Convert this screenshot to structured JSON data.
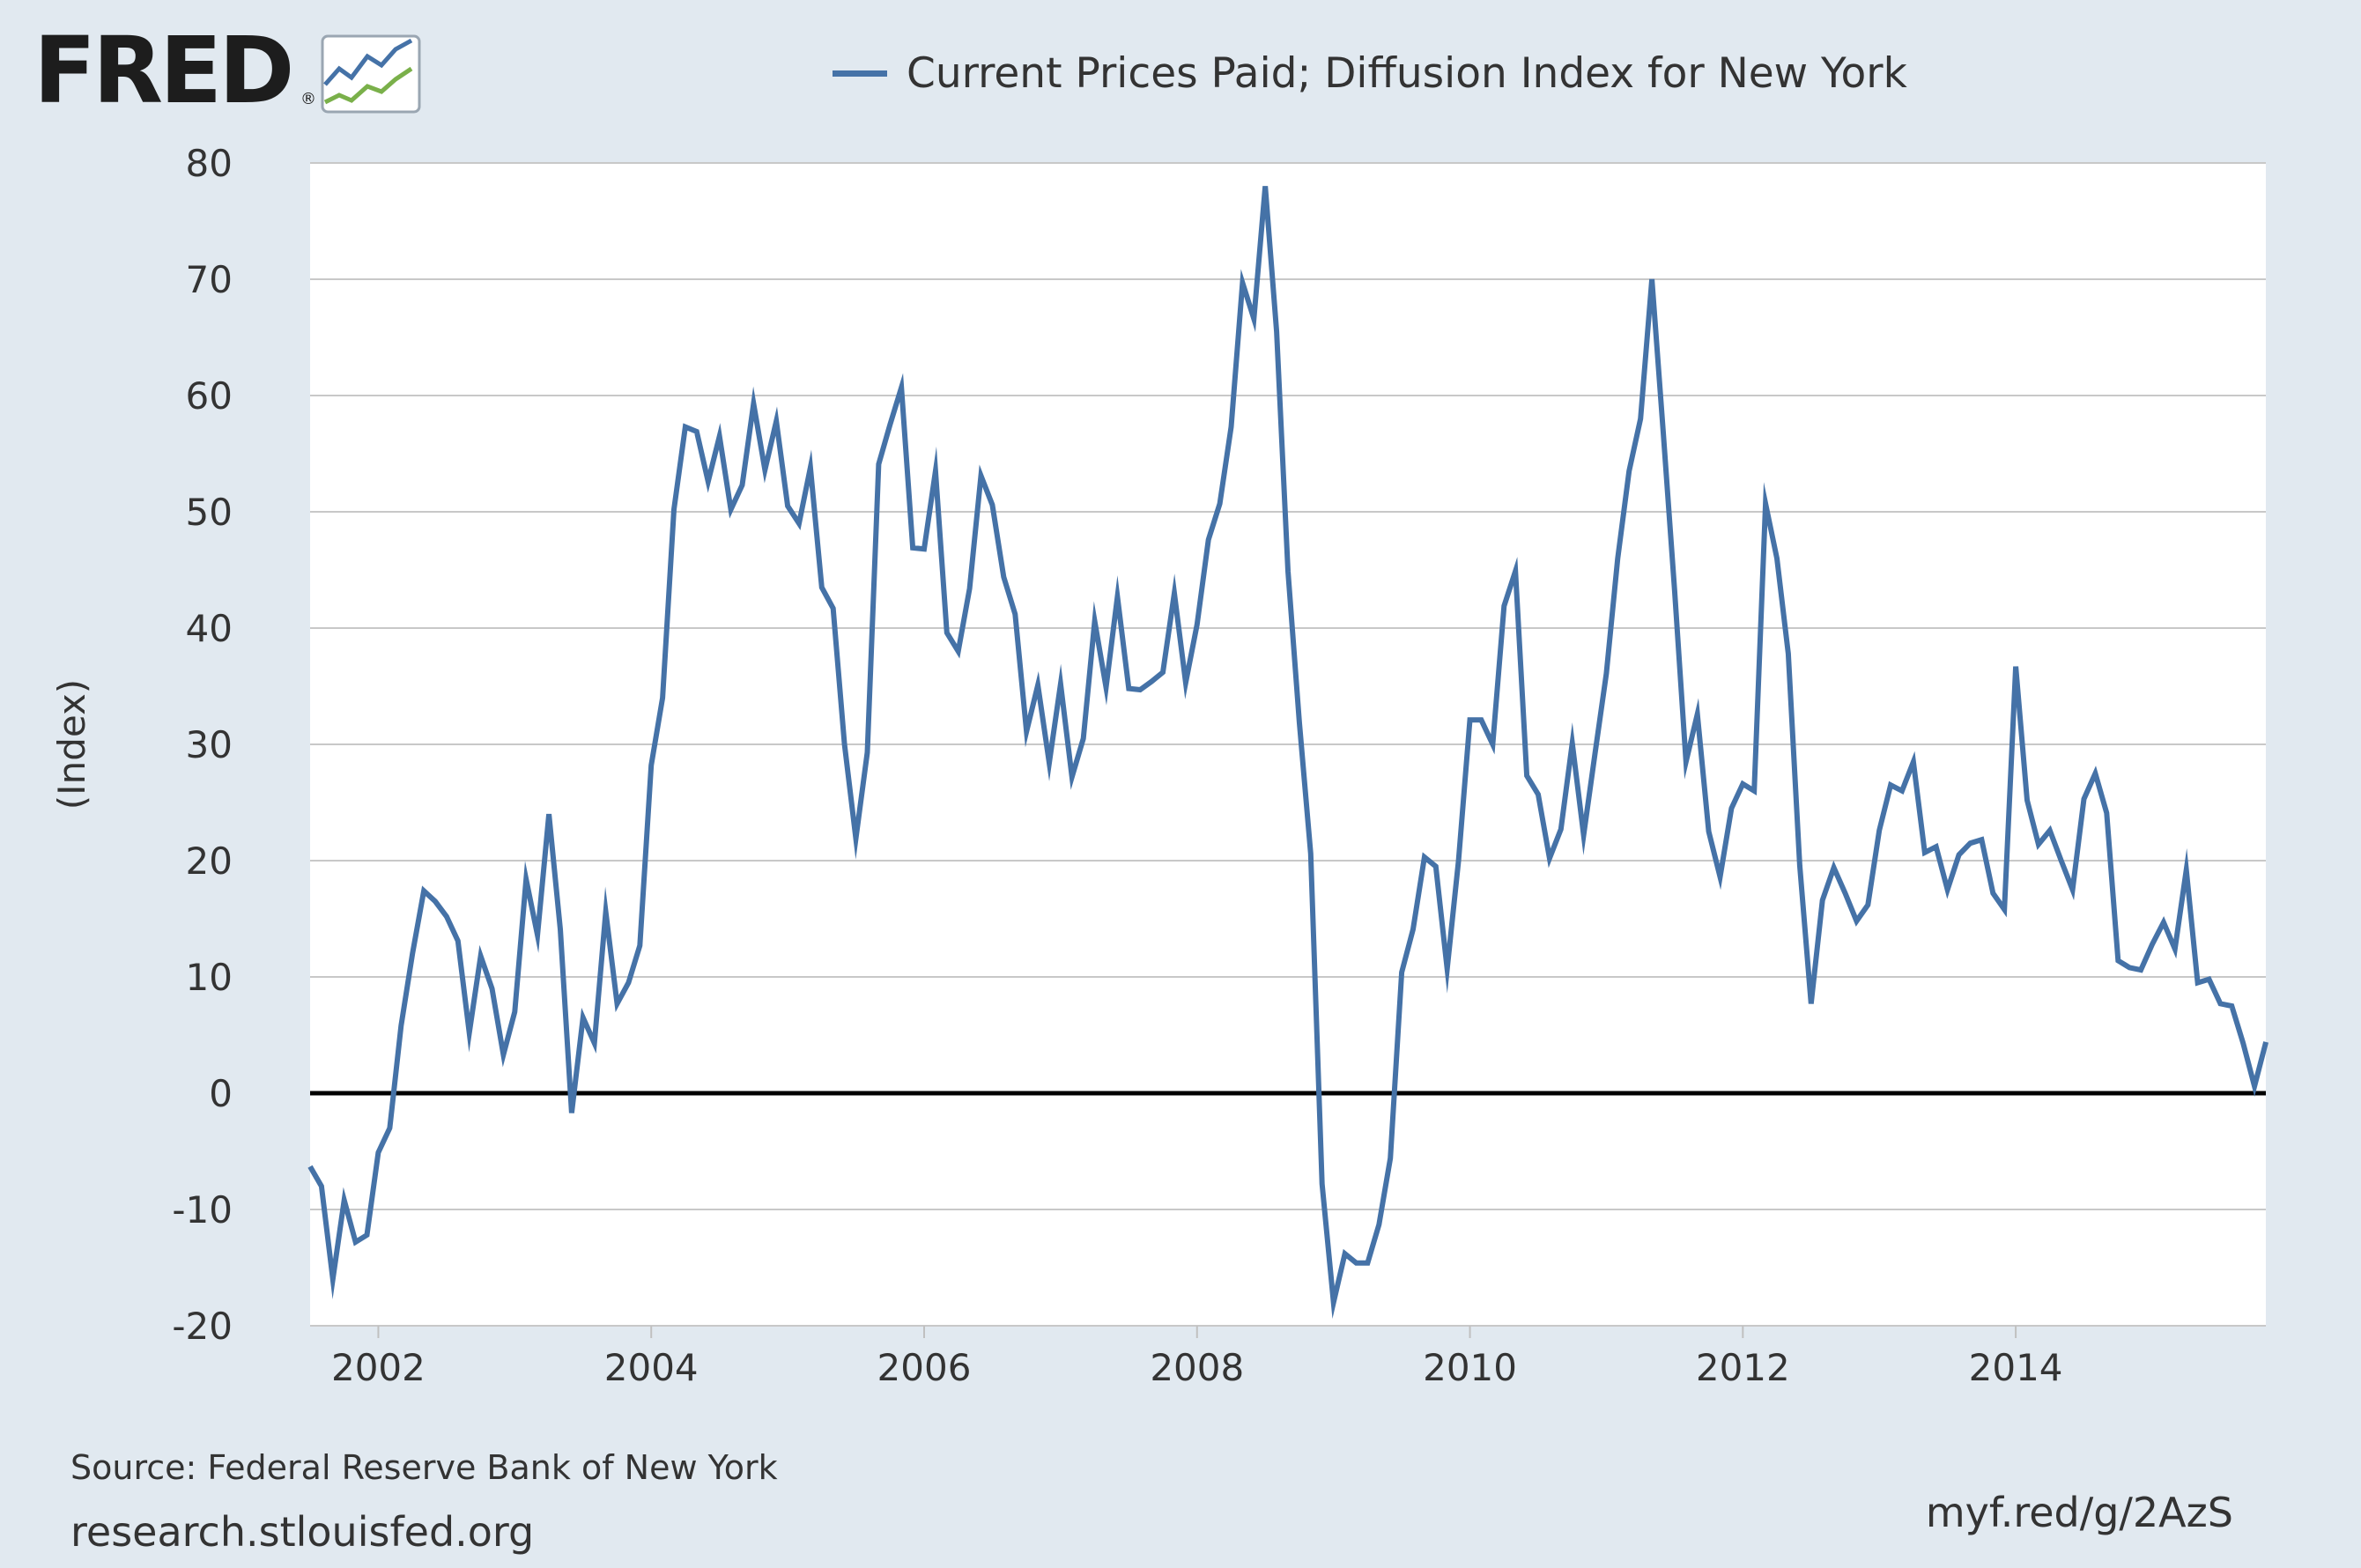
{
  "brand": {
    "logo_text": "FRED",
    "registered_mark": "®",
    "colors": {
      "line1": "#4572a7",
      "line2": "#7ab04a",
      "frame": "#9aa6b2"
    }
  },
  "legend": {
    "label": "Current Prices Paid; Diffusion Index for New York"
  },
  "footer": {
    "source": "Source: Federal Reserve Bank of New York",
    "site": "research.stlouisfed.org",
    "short_url": "myf.red/g/2AzS"
  },
  "chart_data": {
    "type": "line",
    "title": "",
    "xlabel": "",
    "ylabel": "(Index)",
    "ylim": [
      -20,
      80
    ],
    "yticks": [
      -20,
      -10,
      0,
      10,
      20,
      30,
      40,
      50,
      60,
      70,
      80
    ],
    "ytick_labels": [
      "-20",
      "-10",
      "0",
      "10",
      "20",
      "30",
      "40",
      "50",
      "60",
      "70",
      "80"
    ],
    "xlim": [
      2001.5,
      2015.833
    ],
    "xticks": [
      2002,
      2004,
      2006,
      2008,
      2010,
      2012,
      2014
    ],
    "xtick_labels": [
      "2002",
      "2004",
      "2006",
      "2008",
      "2010",
      "2012",
      "2014"
    ],
    "grid": true,
    "zero_line": true,
    "series": [
      {
        "name": "Current Prices Paid; Diffusion Index for New York",
        "color": "#4572a7",
        "start": "2001-07",
        "frequency": "monthly",
        "values": [
          -6.3,
          -8.0,
          -16.0,
          -9.2,
          -12.8,
          -12.2,
          -5.1,
          -3.0,
          5.8,
          12.0,
          17.4,
          16.5,
          15.2,
          13.1,
          5.2,
          11.8,
          9.0,
          3.3,
          7.0,
          18.4,
          13.6,
          24.0,
          14.1,
          -1.7,
          6.5,
          4.3,
          15.6,
          7.7,
          9.5,
          12.7,
          28.2,
          34.0,
          50.2,
          57.3,
          56.9,
          52.6,
          56.5,
          50.2,
          52.3,
          59.3,
          53.6,
          57.8,
          50.5,
          49.0,
          53.8,
          43.5,
          41.7,
          30.0,
          21.9,
          29.3,
          54.1,
          57.5,
          60.7,
          46.9,
          46.8,
          53.5,
          39.6,
          38.0,
          43.4,
          53.1,
          50.6,
          44.4,
          41.2,
          31.1,
          35.1,
          28.4,
          35.2,
          27.2,
          30.5,
          40.6,
          34.9,
          42.7,
          34.8,
          34.7,
          35.4,
          36.2,
          43.0,
          35.3,
          40.3,
          47.6,
          50.7,
          57.3,
          69.7,
          66.6,
          78.0,
          65.5,
          44.9,
          31.9,
          20.6,
          -7.8,
          -18.0,
          -13.8,
          -14.6,
          -14.6,
          -11.3,
          -5.6,
          10.4,
          14.1,
          20.3,
          19.5,
          10.7,
          20.0,
          32.1,
          32.1,
          30.0,
          41.9,
          44.9,
          27.3,
          25.7,
          20.2,
          22.7,
          30.1,
          22.2,
          29.2,
          36.1,
          46.0,
          53.5,
          58.0,
          70.0,
          56.8,
          43.2,
          28.5,
          32.6,
          22.5,
          18.6,
          24.5,
          26.6,
          26.0,
          50.7,
          46.0,
          37.8,
          19.6,
          7.7,
          16.6,
          19.4,
          17.2,
          14.8,
          16.2,
          22.6,
          26.5,
          26.0,
          28.5,
          20.7,
          21.2,
          17.5,
          20.5,
          21.5,
          21.8,
          17.2,
          15.8,
          36.7,
          25.2,
          21.4,
          22.6,
          20.0,
          17.5,
          25.3,
          27.5,
          24.1,
          11.4,
          10.8,
          10.6,
          12.8,
          14.7,
          12.4,
          19.2,
          9.5,
          9.8,
          7.7,
          7.5,
          4.3,
          0.6,
          4.4
        ]
      }
    ]
  }
}
